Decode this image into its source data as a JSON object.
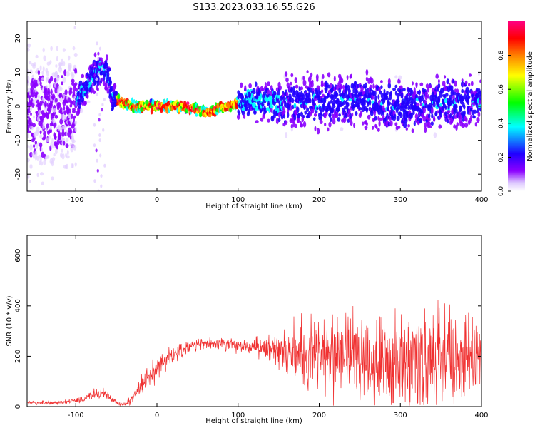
{
  "title": "S133.2023.033.16.55.G26",
  "chart_data": [
    {
      "type": "heatmap",
      "xlabel": "Height of straight line (km)",
      "ylabel": "Frequency (Hz)",
      "xlim": [
        -160,
        400
      ],
      "ylim": [
        -25,
        25
      ],
      "xticks": [
        -100,
        0,
        100,
        200,
        300,
        400
      ],
      "yticks": [
        -20,
        -10,
        0,
        10,
        20
      ],
      "colorbar": {
        "label": "Normalized spectral amplitude",
        "range": [
          0,
          1
        ],
        "ticks": [
          0.0,
          0.2,
          0.4,
          0.6,
          0.8
        ],
        "colormap": [
          "#ffffff",
          "#8b00ff",
          "#2000ff",
          "#00ffff",
          "#00ff00",
          "#ffff00",
          "#ff8000",
          "#ff0000",
          "#ff0080"
        ]
      },
      "ridge": {
        "x": [
          -110,
          -90,
          -70,
          -62,
          -55,
          -45,
          -30,
          -10,
          10,
          30,
          50,
          60,
          70,
          80,
          90,
          100,
          110,
          150,
          200,
          250,
          300,
          350,
          400
        ],
        "y": [
          -2,
          5,
          11,
          10,
          3,
          1,
          0,
          0,
          0,
          0,
          -1,
          -2,
          -1,
          0,
          0,
          1,
          2,
          1,
          1,
          2,
          0,
          1,
          1
        ]
      }
    },
    {
      "type": "line",
      "xlabel": "Height of straight line (km)",
      "ylabel": "SNR (10 * v/v)",
      "xlim": [
        -160,
        400
      ],
      "ylim": [
        0,
        680
      ],
      "xticks": [
        -100,
        0,
        100,
        200,
        300,
        400
      ],
      "yticks": [
        0,
        200,
        400,
        600
      ],
      "color": "#f03030",
      "envelope": {
        "x": [
          -160,
          -120,
          -90,
          -75,
          -65,
          -50,
          -40,
          -30,
          -20,
          0,
          20,
          40,
          60,
          80,
          100,
          120,
          140,
          160,
          180,
          200,
          250,
          300,
          350,
          400
        ],
        "y": [
          15,
          15,
          28,
          55,
          50,
          15,
          8,
          30,
          80,
          150,
          205,
          240,
          250,
          250,
          245,
          230,
          235,
          230,
          210,
          200,
          200,
          180,
          190,
          190
        ],
        "spread": [
          6,
          6,
          10,
          18,
          18,
          6,
          6,
          18,
          30,
          40,
          30,
          22,
          18,
          20,
          25,
          30,
          45,
          70,
          120,
          150,
          170,
          170,
          160,
          150
        ]
      }
    }
  ]
}
